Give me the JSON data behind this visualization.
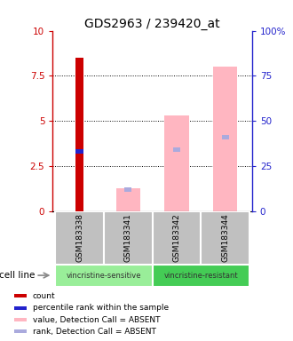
{
  "title": "GDS2963 / 239420_at",
  "samples": [
    "GSM183338",
    "GSM183341",
    "GSM183342",
    "GSM183344"
  ],
  "groups": [
    {
      "label": "vincristine-sensitive",
      "span": [
        0,
        1
      ]
    },
    {
      "label": "vincristine-resistant",
      "span": [
        2,
        3
      ]
    }
  ],
  "left_ylim": [
    0,
    10
  ],
  "right_ylim": [
    0,
    100
  ],
  "left_yticks": [
    0,
    2.5,
    5,
    7.5,
    10
  ],
  "right_yticks": [
    0,
    25,
    50,
    75,
    100
  ],
  "left_yticklabels": [
    "0",
    "2.5",
    "5",
    "7.5",
    "10"
  ],
  "right_yticklabels": [
    "0",
    "25",
    "50",
    "75",
    "100%"
  ],
  "dotted_lines": [
    2.5,
    5,
    7.5
  ],
  "bars": [
    {
      "sample_idx": 0,
      "red_bar_height": 8.5,
      "blue_bar_bottom": 3.2,
      "blue_bar_height": 0.25,
      "pink_bar_height": null,
      "lavender_bar_bottom": null,
      "lavender_bar_height": null
    },
    {
      "sample_idx": 1,
      "red_bar_height": null,
      "blue_bar_bottom": null,
      "blue_bar_height": null,
      "pink_bar_height": 1.3,
      "lavender_bar_bottom": 1.1,
      "lavender_bar_height": 0.25
    },
    {
      "sample_idx": 2,
      "red_bar_height": null,
      "blue_bar_bottom": null,
      "blue_bar_height": null,
      "pink_bar_height": 5.3,
      "lavender_bar_bottom": 3.3,
      "lavender_bar_height": 0.25
    },
    {
      "sample_idx": 3,
      "red_bar_height": null,
      "blue_bar_bottom": null,
      "blue_bar_height": null,
      "pink_bar_height": 8.0,
      "lavender_bar_bottom": 4.0,
      "lavender_bar_height": 0.25
    }
  ],
  "pink_bar_width": 0.5,
  "narrow_bar_width": 0.15,
  "colors": {
    "red": "#CC0000",
    "blue": "#2222CC",
    "pink": "#FFB6C1",
    "lavender": "#AAAADD",
    "sample_box_bg": "#C0C0C0",
    "group_sensitive": "#99EE99",
    "group_resistant": "#44CC55"
  },
  "legend": [
    {
      "color": "#CC0000",
      "label": "count"
    },
    {
      "color": "#2222CC",
      "label": "percentile rank within the sample"
    },
    {
      "color": "#FFB6C1",
      "label": "value, Detection Call = ABSENT"
    },
    {
      "color": "#AAAADD",
      "label": "rank, Detection Call = ABSENT"
    }
  ],
  "cell_line_label": "cell line",
  "left_axis_color": "#CC0000",
  "right_axis_color": "#2222CC",
  "title_fontsize": 10
}
